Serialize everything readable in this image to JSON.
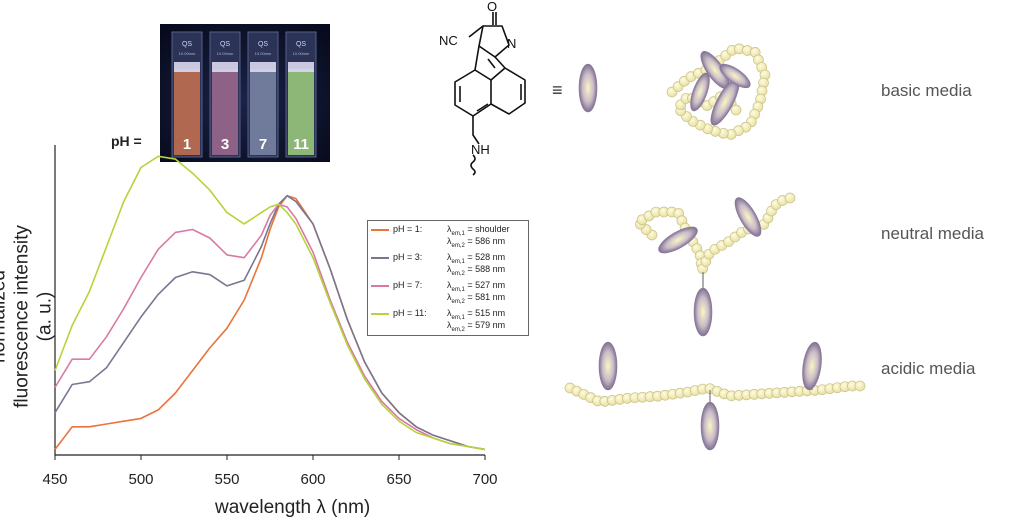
{
  "photo": {
    "ph_prefix": "pH =",
    "vials": [
      {
        "label": "1",
        "color": "#c8724f"
      },
      {
        "label": "3",
        "color": "#a06a8e"
      },
      {
        "label": "7",
        "color": "#7c87a6"
      },
      {
        "label": "11",
        "color": "#9fcf7c"
      }
    ],
    "cap_text": "QS",
    "cap_sub": "10.00mm"
  },
  "molecule": {
    "atoms": {
      "o": "O",
      "n": "N",
      "cn": "NC",
      "nh": "NH"
    },
    "equiv": "≡"
  },
  "media_labels": {
    "basic": "basic media",
    "neutral": "neutral media",
    "acidic": "acidic media"
  },
  "chart_data": {
    "type": "line",
    "xlabel": "wavelength λ (nm)",
    "ylabel": "normalized fluorescence intensity (a. u.)",
    "xlim": [
      450,
      700
    ],
    "ylim": [
      0,
      1.1
    ],
    "x_ticks": [
      "450",
      "500",
      "550",
      "600",
      "650",
      "700"
    ],
    "series": [
      {
        "name": "pH = 1",
        "color": "#e8743b",
        "x": [
          450,
          460,
          470,
          480,
          490,
          500,
          510,
          520,
          530,
          540,
          550,
          560,
          570,
          575,
          580,
          585,
          590,
          600,
          610,
          620,
          630,
          640,
          650,
          660,
          670,
          680,
          690,
          700
        ],
        "y": [
          0.02,
          0.1,
          0.1,
          0.11,
          0.12,
          0.13,
          0.16,
          0.22,
          0.3,
          0.38,
          0.45,
          0.55,
          0.7,
          0.8,
          0.88,
          0.92,
          0.91,
          0.82,
          0.66,
          0.48,
          0.33,
          0.22,
          0.15,
          0.1,
          0.07,
          0.05,
          0.03,
          0.02
        ]
      },
      {
        "name": "pH = 3",
        "color": "#7a7690",
        "x": [
          450,
          460,
          470,
          480,
          490,
          500,
          510,
          520,
          530,
          540,
          550,
          560,
          570,
          575,
          580,
          585,
          590,
          600,
          610,
          620,
          630,
          640,
          650,
          660,
          670,
          680,
          690,
          700
        ],
        "y": [
          0.15,
          0.25,
          0.26,
          0.31,
          0.4,
          0.49,
          0.57,
          0.63,
          0.65,
          0.64,
          0.6,
          0.62,
          0.74,
          0.82,
          0.89,
          0.92,
          0.9,
          0.82,
          0.66,
          0.48,
          0.33,
          0.22,
          0.15,
          0.1,
          0.07,
          0.05,
          0.03,
          0.02
        ]
      },
      {
        "name": "pH = 7",
        "color": "#d97aa6",
        "x": [
          450,
          460,
          470,
          480,
          490,
          500,
          510,
          520,
          530,
          540,
          550,
          560,
          570,
          575,
          580,
          585,
          590,
          600,
          610,
          620,
          630,
          640,
          650,
          660,
          670,
          680,
          690,
          700
        ],
        "y": [
          0.24,
          0.34,
          0.34,
          0.42,
          0.52,
          0.63,
          0.73,
          0.79,
          0.8,
          0.77,
          0.71,
          0.7,
          0.78,
          0.85,
          0.89,
          0.88,
          0.84,
          0.72,
          0.55,
          0.4,
          0.28,
          0.19,
          0.13,
          0.09,
          0.06,
          0.04,
          0.03,
          0.02
        ]
      },
      {
        "name": "pH = 11",
        "color": "#b5d43a",
        "x": [
          450,
          460,
          470,
          480,
          490,
          500,
          510,
          520,
          530,
          540,
          550,
          560,
          570,
          575,
          580,
          585,
          590,
          600,
          610,
          620,
          630,
          640,
          650,
          660,
          670,
          680,
          690,
          700
        ],
        "y": [
          0.3,
          0.46,
          0.58,
          0.74,
          0.9,
          1.02,
          1.06,
          1.05,
          1.0,
          0.94,
          0.86,
          0.82,
          0.86,
          0.88,
          0.89,
          0.86,
          0.82,
          0.7,
          0.54,
          0.39,
          0.27,
          0.18,
          0.12,
          0.08,
          0.06,
          0.04,
          0.03,
          0.02
        ]
      }
    ],
    "legend": {
      "placement": "right",
      "entries": [
        {
          "prefix": "pH = 1:",
          "line1": "= shoulder",
          "line2": "= 586 nm"
        },
        {
          "prefix": "pH = 3:",
          "line1": "= 528 nm",
          "line2": "= 588 nm"
        },
        {
          "prefix": "pH = 7:",
          "line1": "= 527 nm",
          "line2": "= 581 nm"
        },
        {
          "prefix": "pH = 11:",
          "line1": "= 515 nm",
          "line2": "= 579 nm"
        }
      ],
      "lambda": "λ",
      "sub1": "em,1",
      "sub2": "em,2"
    }
  }
}
